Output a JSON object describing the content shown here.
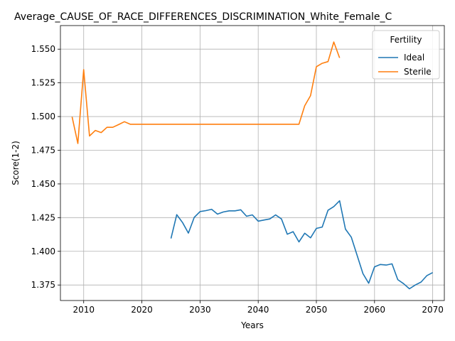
{
  "chart_data": {
    "type": "line",
    "title": "Average_CAUSE_OF_RACE_DIFFERENCES_DISCRIMINATION_White_Female_C",
    "xlabel": "Years",
    "ylabel": "Score(1-2)",
    "xlim": [
      2006,
      2072
    ],
    "ylim": [
      1.3635,
      1.5675
    ],
    "xticks": [
      2010,
      2020,
      2030,
      2040,
      2050,
      2060,
      2070
    ],
    "yticks": [
      1.375,
      1.4,
      1.425,
      1.45,
      1.475,
      1.5,
      1.525,
      1.55
    ],
    "grid": true,
    "legend": {
      "title": "Fertility",
      "placement": "top-right"
    },
    "series": [
      {
        "name": "Ideal",
        "color": "#1f77b4",
        "x": [
          2025,
          2026,
          2027,
          2028,
          2029,
          2030,
          2031,
          2032,
          2033,
          2034,
          2035,
          2036,
          2037,
          2038,
          2039,
          2040,
          2041,
          2042,
          2043,
          2044,
          2045,
          2046,
          2047,
          2048,
          2049,
          2050,
          2051,
          2052,
          2053,
          2054,
          2055,
          2056,
          2057,
          2058,
          2059,
          2060,
          2061,
          2062,
          2063,
          2064,
          2065,
          2066,
          2067,
          2068,
          2069,
          2070
        ],
        "y": [
          1.4095,
          1.4272,
          1.4213,
          1.4135,
          1.4252,
          1.4295,
          1.4302,
          1.4312,
          1.4276,
          1.4292,
          1.43,
          1.43,
          1.4308,
          1.426,
          1.427,
          1.4224,
          1.4232,
          1.424,
          1.427,
          1.424,
          1.4127,
          1.4146,
          1.407,
          1.4134,
          1.41,
          1.417,
          1.418,
          1.4305,
          1.4332,
          1.4375,
          1.4165,
          1.4105,
          1.397,
          1.3835,
          1.3763,
          1.3885,
          1.3902,
          1.3898,
          1.3907,
          1.379,
          1.376,
          1.3722,
          1.375,
          1.3772,
          1.382,
          1.3842
        ]
      },
      {
        "name": "Sterile",
        "color": "#ff7f0e",
        "x": [
          2008,
          2009,
          2010,
          2011,
          2012,
          2013,
          2014,
          2015,
          2016,
          2017,
          2018,
          2019,
          2020,
          2021,
          2022,
          2023,
          2024,
          2025,
          2026,
          2027,
          2028,
          2029,
          2030,
          2031,
          2032,
          2033,
          2034,
          2035,
          2036,
          2037,
          2038,
          2039,
          2040,
          2041,
          2042,
          2043,
          2044,
          2045,
          2046,
          2047,
          2048,
          2049,
          2050,
          2051,
          2052,
          2053,
          2054
        ],
        "y": [
          1.4998,
          1.48,
          1.5348,
          1.4856,
          1.4897,
          1.4881,
          1.492,
          1.492,
          1.494,
          1.4962,
          1.4943,
          1.4943,
          1.4943,
          1.4943,
          1.4943,
          1.4943,
          1.4943,
          1.4943,
          1.4943,
          1.4943,
          1.4943,
          1.4943,
          1.4943,
          1.4943,
          1.4943,
          1.4943,
          1.4943,
          1.4943,
          1.4943,
          1.4943,
          1.4943,
          1.4943,
          1.4943,
          1.4943,
          1.4943,
          1.4943,
          1.4943,
          1.4943,
          1.4943,
          1.4943,
          1.508,
          1.5155,
          1.537,
          1.5395,
          1.5408,
          1.5553,
          1.5435
        ]
      }
    ]
  }
}
